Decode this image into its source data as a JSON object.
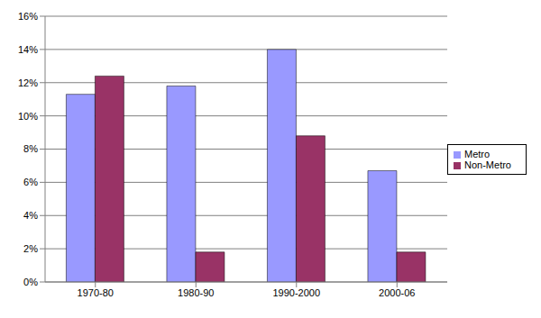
{
  "chart_data": {
    "type": "bar",
    "categories": [
      "1970-80",
      "1980-90",
      "1990-2000",
      "2000-06"
    ],
    "series": [
      {
        "name": "Metro",
        "color": "#9999ff",
        "values": [
          11.3,
          11.8,
          14.0,
          6.7
        ]
      },
      {
        "name": "Non-Metro",
        "color": "#993366",
        "values": [
          12.4,
          1.8,
          8.8,
          1.8
        ]
      }
    ],
    "ylim": [
      0,
      16
    ],
    "yticks": [
      {
        "value": 0,
        "label": "0%"
      },
      {
        "value": 2,
        "label": "2%"
      },
      {
        "value": 4,
        "label": "4%"
      },
      {
        "value": 6,
        "label": "6%"
      },
      {
        "value": 8,
        "label": "8%"
      },
      {
        "value": 10,
        "label": "10%"
      },
      {
        "value": 12,
        "label": "12%"
      },
      {
        "value": 14,
        "label": "14%"
      },
      {
        "value": 16,
        "label": "16%"
      }
    ],
    "grid": true,
    "legend": "right"
  }
}
